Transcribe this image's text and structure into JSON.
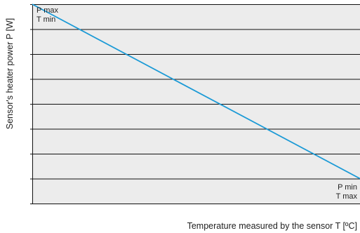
{
  "chart_data": {
    "type": "line",
    "title": "",
    "xlabel": "Temperature measured by the sensor T [ºC]",
    "ylabel": "Sensor's heater power P [W]",
    "xlim": [
      0,
      1
    ],
    "ylim": [
      0,
      8
    ],
    "grid": true,
    "series": [
      {
        "color": "#1b9ad6",
        "x": [
          0,
          1
        ],
        "y": [
          8,
          1
        ]
      }
    ],
    "annotations": {
      "top_left": [
        "P max",
        "T min"
      ],
      "bottom_right": [
        "P min",
        "T max"
      ]
    },
    "plot_background": "#ececec",
    "grid_color": "#111111"
  }
}
